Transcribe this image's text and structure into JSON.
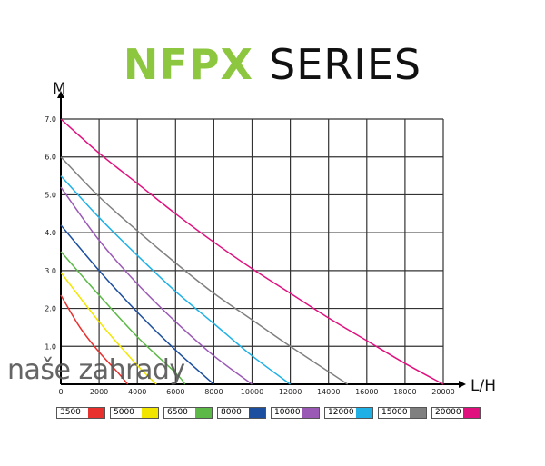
{
  "title": {
    "part1": "NFPX",
    "part2": "SERIES",
    "part1_color": "#8dc63f"
  },
  "watermark": "naše zahrady",
  "chart_data": {
    "type": "line",
    "title": "NFPX SERIES",
    "xlabel": "L/H",
    "ylabel": "M",
    "xlim": [
      0,
      20000
    ],
    "ylim": [
      0,
      7
    ],
    "xticks": [
      0,
      2000,
      4000,
      6000,
      8000,
      10000,
      12000,
      14000,
      16000,
      18000,
      20000
    ],
    "yticks": [
      "1.0",
      "2.0",
      "3.0",
      "4.0",
      "5.0",
      "6.0",
      "7.0"
    ],
    "grid": true,
    "legend": "bottom",
    "series": [
      {
        "name": "3500",
        "color": "#e8302e",
        "x": [
          0,
          1000,
          2000,
          3000,
          3500
        ],
        "y": [
          2.35,
          1.5,
          0.85,
          0.3,
          0
        ]
      },
      {
        "name": "5000",
        "color": "#f2e600",
        "x": [
          0,
          2000,
          4000,
          5000
        ],
        "y": [
          2.95,
          1.65,
          0.5,
          0
        ]
      },
      {
        "name": "6500",
        "color": "#5cb847",
        "x": [
          0,
          2000,
          4000,
          6000,
          6500
        ],
        "y": [
          3.5,
          2.35,
          1.25,
          0.3,
          0
        ]
      },
      {
        "name": "8000",
        "color": "#1d4fa0",
        "x": [
          0,
          2000,
          4000,
          6000,
          8000
        ],
        "y": [
          4.2,
          3.0,
          1.9,
          0.9,
          0
        ]
      },
      {
        "name": "10000",
        "color": "#9b59b6",
        "x": [
          0,
          2000,
          4000,
          6000,
          8000,
          10000
        ],
        "y": [
          5.2,
          3.8,
          2.65,
          1.65,
          0.75,
          0
        ]
      },
      {
        "name": "12000",
        "color": "#1fb1e6",
        "x": [
          0,
          2000,
          4000,
          6000,
          8000,
          10000,
          12000
        ],
        "y": [
          5.5,
          4.4,
          3.4,
          2.45,
          1.6,
          0.75,
          0
        ]
      },
      {
        "name": "15000",
        "color": "#808080",
        "x": [
          0,
          2000,
          4000,
          6000,
          8000,
          10000,
          12000,
          15000
        ],
        "y": [
          6.0,
          4.95,
          4.05,
          3.2,
          2.4,
          1.7,
          1.0,
          0
        ]
      },
      {
        "name": "20000",
        "color": "#e0117f",
        "x": [
          0,
          2000,
          4000,
          6000,
          8000,
          10000,
          12000,
          14000,
          16000,
          18000,
          20000
        ],
        "y": [
          7.0,
          6.1,
          5.3,
          4.5,
          3.75,
          3.05,
          2.4,
          1.75,
          1.15,
          0.55,
          0
        ]
      }
    ]
  }
}
